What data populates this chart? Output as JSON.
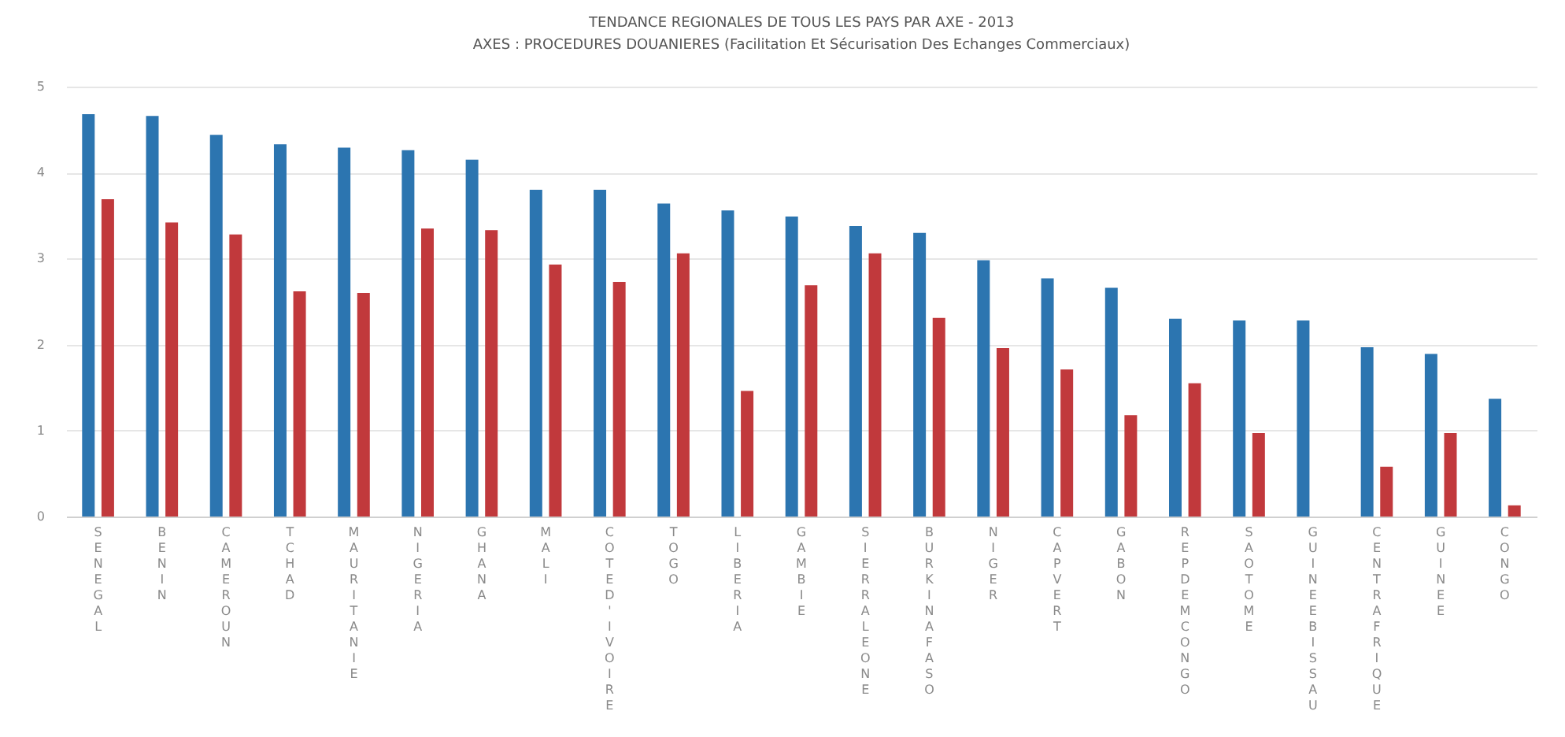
{
  "chart_data": {
    "type": "bar",
    "title": "TENDANCE REGIONALES DE TOUS LES PAYS PAR AXE - 2013",
    "subtitle": "AXES : PROCEDURES DOUANIERES (Facilitation Et Sécurisation Des Echanges Commerciaux)",
    "categories": [
      "SENEGAL",
      "BENIN",
      "CAMEROUN",
      "TCHAD",
      "MAURITANIE",
      "NIGERIA",
      "GHANA",
      "MALI",
      "COTE D'IVOIRE",
      "TOGO",
      "LIBERIA",
      "GAMBIE",
      "SIERRALEONE",
      "BURKINA FASO",
      "NIGER",
      "CAP VERT",
      "GABON",
      "REP DEM CONGO",
      "SAO TOME",
      "GUINEE BISSAU",
      "CENTRAFRIQUE",
      "GUINEE",
      "CONGO"
    ],
    "series": [
      {
        "color": "#2c75b0",
        "values": [
          4.68,
          4.66,
          4.44,
          4.33,
          4.29,
          4.26,
          4.15,
          3.8,
          3.8,
          3.64,
          3.56,
          3.49,
          3.38,
          3.3,
          2.98,
          2.77,
          2.66,
          2.3,
          2.28,
          2.28,
          1.97,
          1.89,
          1.37
        ]
      },
      {
        "color": "#c1393c",
        "values": [
          3.69,
          3.42,
          3.28,
          2.62,
          2.6,
          3.35,
          3.33,
          2.93,
          2.73,
          3.06,
          1.46,
          2.69,
          3.06,
          2.31,
          1.96,
          1.71,
          1.18,
          1.55,
          0.97,
          null,
          0.58,
          0.97,
          0.13
        ]
      }
    ],
    "ylim": [
      0,
      5
    ],
    "yticks": [
      0,
      1,
      2,
      3,
      4,
      5
    ],
    "grid": "y",
    "legend": false
  }
}
